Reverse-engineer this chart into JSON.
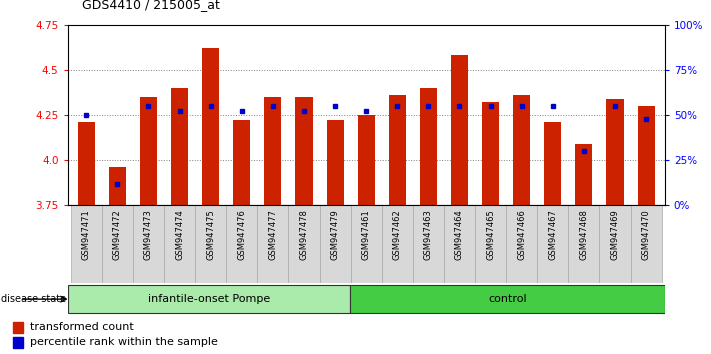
{
  "title": "GDS4410 / 215005_at",
  "samples": [
    "GSM947471",
    "GSM947472",
    "GSM947473",
    "GSM947474",
    "GSM947475",
    "GSM947476",
    "GSM947477",
    "GSM947478",
    "GSM947479",
    "GSM947461",
    "GSM947462",
    "GSM947463",
    "GSM947464",
    "GSM947465",
    "GSM947466",
    "GSM947467",
    "GSM947468",
    "GSM947469",
    "GSM947470"
  ],
  "transformed_count": [
    4.21,
    3.96,
    4.35,
    4.4,
    4.62,
    4.22,
    4.35,
    4.35,
    4.22,
    4.25,
    4.36,
    4.4,
    4.58,
    4.32,
    4.36,
    4.21,
    4.09,
    4.34,
    4.3
  ],
  "percentile_rank": [
    50,
    12,
    55,
    52,
    55,
    52,
    55,
    52,
    55,
    52,
    55,
    55,
    55,
    55,
    55,
    55,
    30,
    55,
    48
  ],
  "group_labels": [
    "infantile-onset Pompe",
    "control"
  ],
  "group_counts": [
    9,
    10
  ],
  "ylim_left": [
    3.75,
    4.75
  ],
  "ylim_right": [
    0,
    100
  ],
  "yticks_left": [
    3.75,
    4.0,
    4.25,
    4.5,
    4.75
  ],
  "yticks_right": [
    0,
    25,
    50,
    75,
    100
  ],
  "bar_color": "#CC2200",
  "dot_color": "#0000CC",
  "plot_bg": "#FFFFFF",
  "tick_bg": "#D8D8D8",
  "group_color_pompe": "#AAEAAA",
  "group_color_control": "#44CC44",
  "label_transformed": "transformed count",
  "label_percentile": "percentile rank within the sample",
  "disease_state_label": "disease state"
}
